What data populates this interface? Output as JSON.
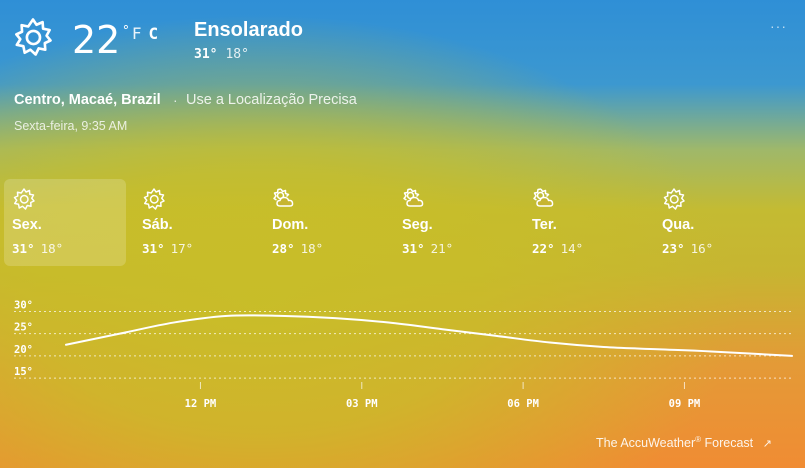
{
  "current": {
    "temperature": "22",
    "unit_deg": "°",
    "unit_f": "F",
    "unit_c": "C",
    "condition": "Ensolarado",
    "high": "31°",
    "low": "18°",
    "icon": "sun-icon"
  },
  "menu": {
    "more_label": "···"
  },
  "location": {
    "name": "Centro, Macaé, Brazil",
    "separator": "·",
    "precise_link": "Use a Localização Precisa",
    "datetime": "Sexta-feira, 9:35 AM"
  },
  "days": [
    {
      "name": "Sex.",
      "high": "31°",
      "low": "18°",
      "icon": "sun-icon"
    },
    {
      "name": "Sáb.",
      "high": "31°",
      "low": "17°",
      "icon": "sun-icon"
    },
    {
      "name": "Dom.",
      "high": "28°",
      "low": "18°",
      "icon": "partly-cloudy-icon"
    },
    {
      "name": "Seg.",
      "high": "31°",
      "low": "21°",
      "icon": "partly-cloudy-icon"
    },
    {
      "name": "Ter.",
      "high": "22°",
      "low": "14°",
      "icon": "partly-cloudy-icon"
    },
    {
      "name": "Qua.",
      "high": "23°",
      "low": "16°",
      "icon": "sun-icon"
    }
  ],
  "chart_data": {
    "type": "line",
    "y_ticks": [
      "30°",
      "25°",
      "20°",
      "15°"
    ],
    "y_tick_values": [
      30,
      25,
      20,
      15
    ],
    "ylim": [
      13,
      31
    ],
    "x_ticks": [
      "12 PM",
      "03 PM",
      "06 PM",
      "09 PM"
    ],
    "x_tick_hours": [
      12,
      15,
      18,
      21
    ],
    "xlim": [
      9.5,
      23
    ],
    "series": [
      {
        "hours": [
          9.5,
          10.5,
          11.5,
          12.5,
          13.5,
          14.5,
          15.5,
          16.5,
          17.5,
          18.5,
          19.5,
          20.5,
          21.5,
          23
        ],
        "values": [
          22.5,
          25,
          27.5,
          29,
          29,
          28.5,
          27.5,
          26,
          24.5,
          23,
          22,
          21.5,
          21,
          20
        ]
      }
    ]
  },
  "footer": {
    "brand": "The AccuWeather",
    "brand_mark": "®",
    "brand_suffix": "Forecast",
    "arrow": "↗"
  }
}
